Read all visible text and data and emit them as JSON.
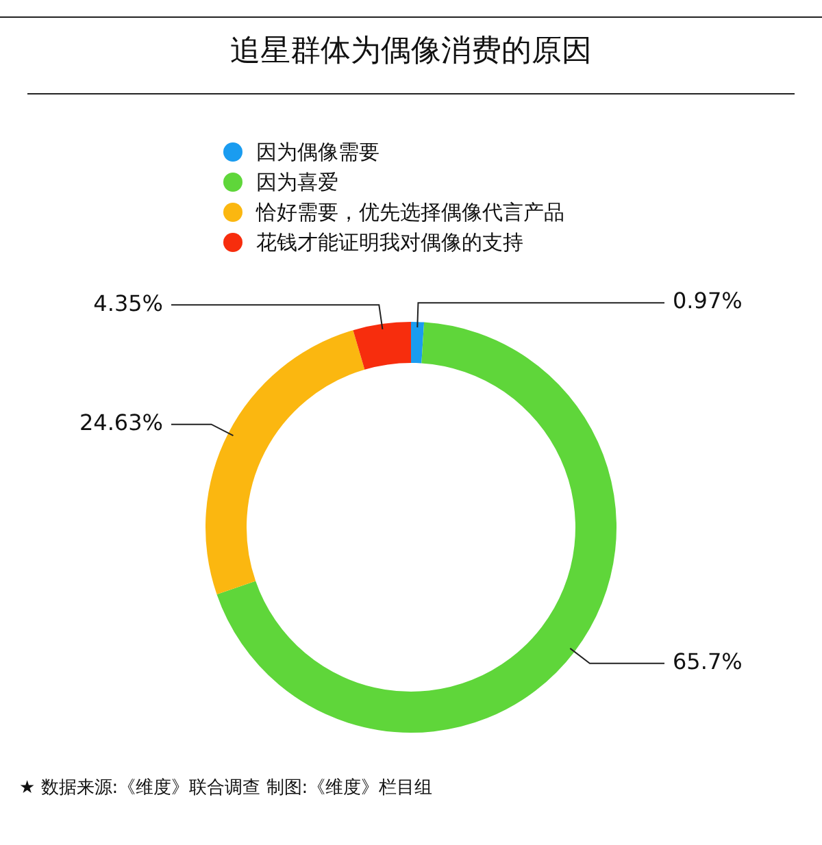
{
  "chart_data": {
    "type": "donut",
    "title": "追星群体为偶像消费的原因",
    "categories": [
      "因为偶像需要",
      "因为喜爱",
      "恰好需要，优先选择偶像代言产品",
      "花钱才能证明我对偶像的支持"
    ],
    "values": [
      0.97,
      65.7,
      24.63,
      4.35
    ],
    "value_labels": [
      "0.97%",
      "65.7%",
      "24.63%",
      "4.35%"
    ],
    "colors": [
      "#1a9cf0",
      "#5fd63a",
      "#fbb710",
      "#f72d0d"
    ],
    "legend": "top left",
    "annotations": [
      "★  数据来源:《维度》联合调查    制图:《维度》栏目组"
    ]
  }
}
